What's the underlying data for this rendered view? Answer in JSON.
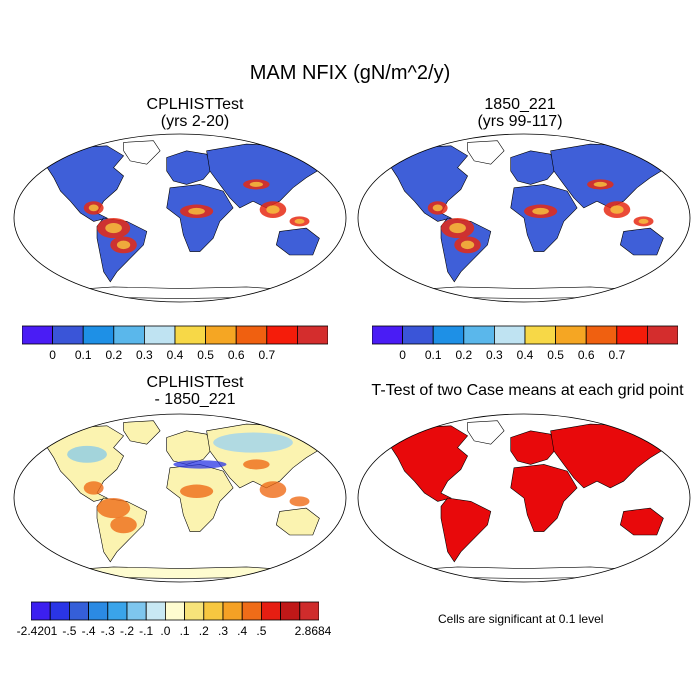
{
  "figure": {
    "title": "MAM NFIX (gN/m^2/y)"
  },
  "panels": [
    {
      "id": "case1",
      "title_line1": "CPLHISTTest",
      "title_line2": "(yrs 2-20)"
    },
    {
      "id": "case2",
      "title_line1": "1850_221",
      "title_line2": "(yrs 99-117)"
    },
    {
      "id": "diff",
      "title_line1": "CPLHISTTest",
      "title_line2": "- 1850_221"
    },
    {
      "id": "ttest",
      "title_line1": "T-Test of two Case means at each grid point",
      "title_line2": ""
    }
  ],
  "colorbar_main": {
    "colors": [
      "#4a1cf5",
      "#3a55d8",
      "#1e90e6",
      "#5ab7eb",
      "#bfe3f2",
      "#f7d847",
      "#f5a623",
      "#f06010",
      "#f51c0a",
      "#d42d2d"
    ],
    "labels": [
      "0",
      "0.1",
      "0.2",
      "0.3",
      "0.4",
      "0.5",
      "0.6",
      "0.7"
    ]
  },
  "colorbar_diff": {
    "colors": [
      "#3c1ff0",
      "#2a35e6",
      "#355fd9",
      "#2b8ae3",
      "#3aa4ea",
      "#7ec6ee",
      "#c8e8f3",
      "#fefcd0",
      "#f7e37a",
      "#f7c740",
      "#f5a125",
      "#ef6c18",
      "#e61e12",
      "#c01818",
      "#cf2c2c"
    ],
    "labels": [
      "-2.4201",
      "-.5",
      "-.4",
      "-.3",
      "-.2",
      "-.1",
      ".0",
      ".1",
      ".2",
      ".3",
      ".4",
      ".5",
      "2.8684"
    ]
  },
  "ttest_note": "Cells are significant at 0.1 level",
  "colors": {
    "ocean_case": "#3f5fd8",
    "land_low": "#3f5fd8",
    "significant": "#e8090b",
    "coastline": "#000000"
  }
}
